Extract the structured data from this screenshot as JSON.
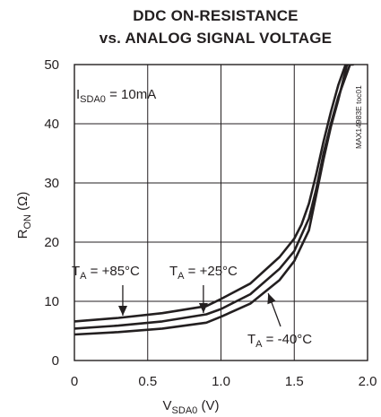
{
  "chart_data": {
    "type": "line",
    "title_line1": "DDC ON-RESISTANCE",
    "title_line2": "vs. ANALOG SIGNAL VOLTAGE",
    "xlabel": {
      "main": "V",
      "sub": "SDA0",
      "unit": " (V)"
    },
    "ylabel": {
      "main": "R",
      "sub": "ON",
      "unit": " (Ω)"
    },
    "xlim": [
      0,
      2.0
    ],
    "ylim": [
      0,
      50
    ],
    "x_ticks": [
      "0",
      "0.5",
      "1.0",
      "1.5",
      "2.0"
    ],
    "y_ticks": [
      "0",
      "10",
      "20",
      "30",
      "40",
      "50"
    ],
    "grid": true,
    "condition": {
      "main": "I",
      "sub": "SDA0",
      "rest": " = 10mA"
    },
    "watermark": "MAX14983E toc01",
    "series": [
      {
        "name": "TA = +85°C",
        "x": [
          0,
          0.3,
          0.6,
          0.9,
          1.0,
          1.2,
          1.4,
          1.5,
          1.55,
          1.6,
          1.65,
          1.7,
          1.75,
          1.8,
          1.85,
          1.9
        ],
        "y": [
          6.6,
          7.2,
          8.0,
          9.2,
          10.4,
          13.0,
          17.5,
          20.6,
          23.0,
          26.5,
          31.5,
          37.0,
          42.0,
          46.5,
          50.0,
          50.0
        ]
      },
      {
        "name": "TA = +25°C",
        "x": [
          0,
          0.3,
          0.6,
          0.9,
          1.0,
          1.2,
          1.4,
          1.5,
          1.6,
          1.65,
          1.7,
          1.75,
          1.8,
          1.88
        ],
        "y": [
          5.4,
          5.9,
          6.6,
          7.8,
          8.7,
          11.2,
          15.5,
          18.5,
          24.0,
          29.0,
          35.0,
          40.0,
          44.5,
          50.0
        ]
      },
      {
        "name": "TA = -40°C",
        "x": [
          0,
          0.3,
          0.6,
          0.9,
          1.0,
          1.2,
          1.4,
          1.5,
          1.6,
          1.65,
          1.7,
          1.75,
          1.8,
          1.86
        ],
        "y": [
          4.4,
          4.8,
          5.4,
          6.4,
          7.4,
          9.6,
          13.6,
          16.8,
          22.0,
          28.0,
          34.0,
          39.5,
          44.0,
          50.0
        ]
      }
    ],
    "annotations": [
      {
        "series": 0,
        "main": "T",
        "sub": "A",
        "rest": " = +85°C"
      },
      {
        "series": 1,
        "main": "T",
        "sub": "A",
        "rest": " = +25°C"
      },
      {
        "series": 2,
        "main": "T",
        "sub": "A",
        "rest": " = -40°C"
      }
    ]
  }
}
